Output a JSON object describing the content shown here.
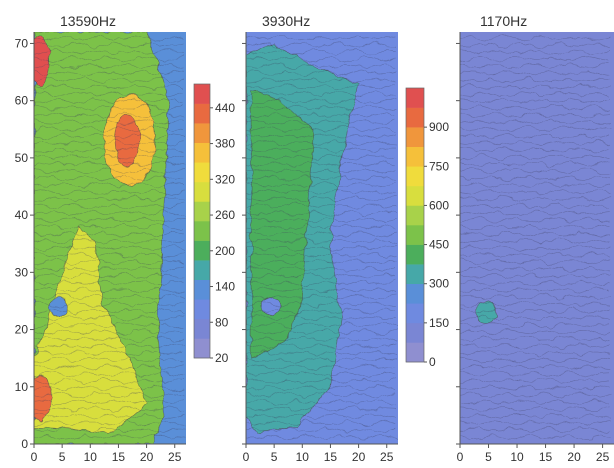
{
  "chart_data": [
    {
      "type": "heatmap",
      "title": "13590Hz",
      "xlabel": "",
      "ylabel": "",
      "xlim": [
        0,
        27
      ],
      "ylim": [
        0,
        72
      ],
      "x_ticks": [
        0,
        5,
        10,
        15,
        20,
        25
      ],
      "y_ticks": [
        0,
        10,
        20,
        30,
        40,
        50,
        60,
        70
      ],
      "colorbar": {
        "range": [
          20,
          480
        ],
        "ticks": [
          20,
          80,
          140,
          200,
          260,
          320,
          380,
          440
        ]
      },
      "regions": [
        {
          "shape": "rect",
          "x": [
            0,
            27
          ],
          "y": [
            0,
            72
          ],
          "value": 120
        },
        {
          "shape": "poly",
          "points": [
            [
              0,
              2
            ],
            [
              0,
              72
            ],
            [
              20,
              72
            ],
            [
              24,
              60
            ],
            [
              23,
              40
            ],
            [
              22,
              20
            ],
            [
              23,
              5
            ],
            [
              21,
              0
            ],
            [
              0,
              0
            ]
          ],
          "value": 240
        },
        {
          "shape": "poly",
          "points": [
            [
              0,
              3
            ],
            [
              14,
              2
            ],
            [
              20,
              7
            ],
            [
              17,
              15
            ],
            [
              12,
              25
            ],
            [
              11,
              35
            ],
            [
              8,
              38
            ],
            [
              5,
              30
            ],
            [
              2,
              20
            ],
            [
              0,
              15
            ]
          ],
          "value": 310
        },
        {
          "shape": "ellipse",
          "cx": 17,
          "cy": 53,
          "rx": 4.5,
          "ry": 8,
          "value": 350
        },
        {
          "shape": "ellipse",
          "cx": 16.5,
          "cy": 53,
          "rx": 2.2,
          "ry": 4.5,
          "value": 440
        },
        {
          "shape": "ellipse",
          "cx": 1,
          "cy": 8,
          "rx": 2,
          "ry": 4,
          "value": 430
        },
        {
          "shape": "ellipse",
          "cx": 1,
          "cy": 67,
          "rx": 1.8,
          "ry": 4.5,
          "value": 450
        },
        {
          "shape": "ellipse",
          "cx": 4.5,
          "cy": 24,
          "rx": 1.6,
          "ry": 1.6,
          "value": 140
        }
      ]
    },
    {
      "type": "heatmap",
      "title": "3930Hz",
      "xlabel": "",
      "ylabel": "",
      "xlim": [
        0,
        27
      ],
      "ylim": [
        0,
        72
      ],
      "x_ticks": [
        0,
        5,
        10,
        15,
        20,
        25
      ],
      "y_ticks": [],
      "colorbar": {
        "range": [
          0,
          1050
        ],
        "ticks": [
          0,
          150,
          300,
          450,
          600,
          750,
          900
        ]
      },
      "regions": [
        {
          "shape": "rect",
          "x": [
            0,
            27
          ],
          "y": [
            0,
            72
          ],
          "value": 160
        },
        {
          "shape": "poly",
          "points": [
            [
              0,
              5
            ],
            [
              0,
              68
            ],
            [
              5,
              70
            ],
            [
              12,
              66
            ],
            [
              20,
              63
            ],
            [
              17,
              50
            ],
            [
              15,
              35
            ],
            [
              17,
              22
            ],
            [
              15,
              10
            ],
            [
              9,
              3
            ],
            [
              2,
              2
            ]
          ],
          "value": 340
        },
        {
          "shape": "poly",
          "points": [
            [
              1,
              15
            ],
            [
              1,
              62
            ],
            [
              6,
              60
            ],
            [
              12,
              55
            ],
            [
              11,
              40
            ],
            [
              10,
              25
            ],
            [
              7,
              18
            ]
          ],
          "value": 410
        },
        {
          "shape": "ellipse",
          "cx": 4.5,
          "cy": 24,
          "rx": 1.6,
          "ry": 1.6,
          "value": 200
        }
      ]
    },
    {
      "type": "heatmap",
      "title": "1170Hz",
      "xlabel": "",
      "ylabel": "",
      "xlim": [
        0,
        27
      ],
      "ylim": [
        0,
        72
      ],
      "x_ticks": [
        0,
        5,
        10,
        15,
        20,
        25
      ],
      "y_ticks": [],
      "colorbar": null,
      "regions": [
        {
          "shape": "rect",
          "x": [
            0,
            27
          ],
          "y": [
            0,
            72
          ],
          "value": 0.12
        },
        {
          "shape": "ellipse",
          "cx": 4.5,
          "cy": 23,
          "rx": 1.8,
          "ry": 2,
          "value": 0.3
        }
      ]
    }
  ],
  "colormap": [
    "#8f8fd0",
    "#7a86d4",
    "#6f8ae0",
    "#5a8fd8",
    "#46a8a8",
    "#4cae5c",
    "#7cc24a",
    "#a8d24a",
    "#d8de3e",
    "#f0dc3c",
    "#f5c03a",
    "#f0963c",
    "#e86a40",
    "#e05050"
  ]
}
